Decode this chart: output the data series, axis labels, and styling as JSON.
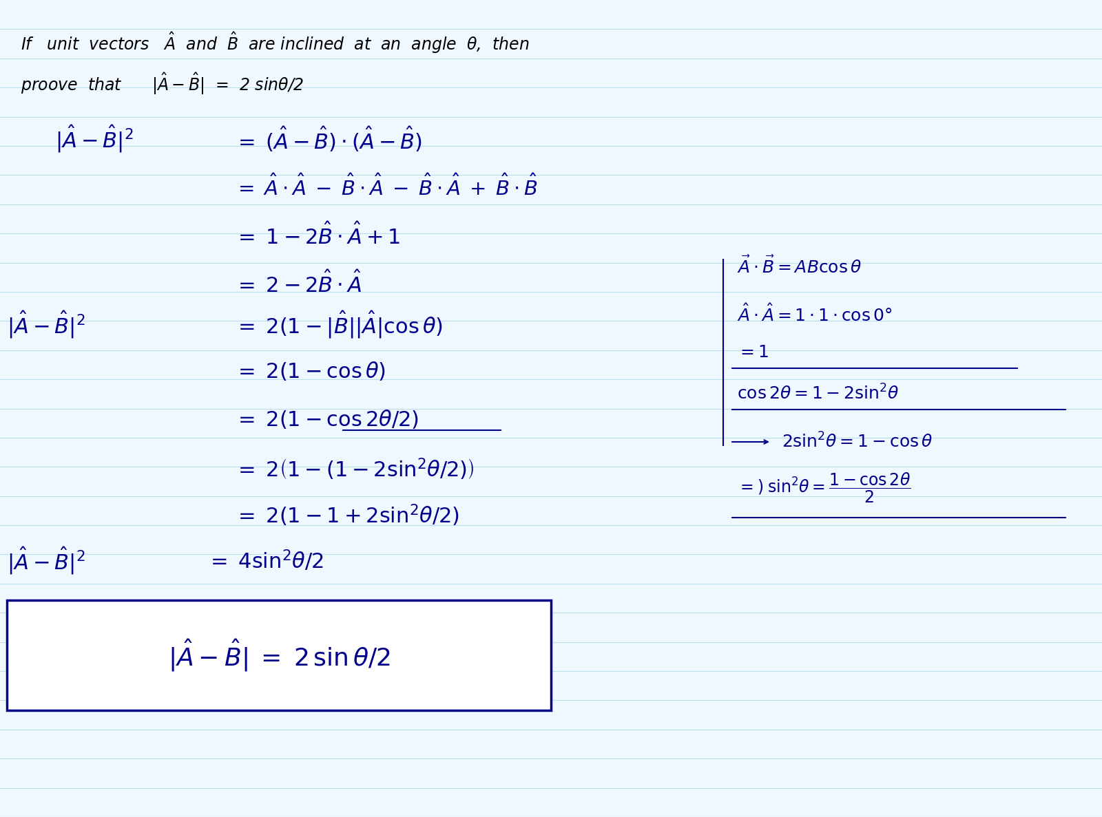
{
  "bg_color": "#f0f8ff",
  "line_color": "#add8e6",
  "text_color_black": "#000000",
  "text_color_blue": "#00008B",
  "title_line1": "If  unit  vectors  $\\hat{A}$  and  $\\hat{B}$  are inclined  at  an  angle  $\\theta$,  then",
  "title_line2": "   proove  that    $|\\hat{A} - \\hat{B}|$  =  2 sinθ/2",
  "fig_width": 16.0,
  "fig_height": 11.87,
  "dpi": 100
}
